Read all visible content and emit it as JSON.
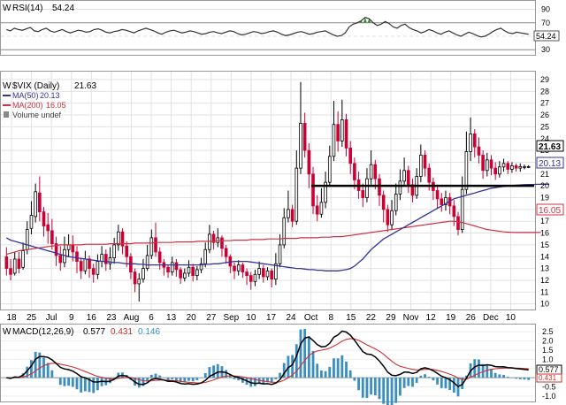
{
  "rsi": {
    "label": "RSI(14)",
    "value_text": "54.24",
    "yticks": [
      90,
      70,
      50,
      30
    ],
    "ylim": [
      25,
      100
    ],
    "line_color": "#333333",
    "values": [
      60,
      58,
      62,
      60,
      59,
      61,
      63,
      58,
      57,
      60,
      62,
      58,
      56,
      58,
      60,
      57,
      55,
      57,
      59,
      58,
      56,
      57,
      60,
      61,
      59,
      56,
      55,
      57,
      58,
      60,
      59,
      57,
      55,
      58,
      60,
      62,
      60,
      58,
      55,
      53,
      56,
      58,
      59,
      57,
      55,
      56,
      58,
      57,
      55,
      53,
      54,
      56,
      57,
      55,
      54,
      56,
      58,
      57,
      54,
      52,
      53,
      55,
      57,
      56,
      54,
      55,
      57,
      58,
      56,
      53,
      51,
      52,
      54,
      56,
      57,
      55,
      53,
      54,
      56,
      57,
      58,
      55,
      52,
      50,
      51,
      55,
      64,
      68,
      70,
      73,
      78,
      76,
      70,
      66,
      68,
      72,
      69,
      64,
      62,
      66,
      68,
      63,
      60,
      58,
      55,
      57,
      60,
      58,
      55,
      53,
      56,
      58,
      55,
      52,
      50,
      53,
      56,
      54,
      51,
      49,
      50,
      53,
      57,
      60,
      62,
      58,
      55,
      54,
      56,
      55,
      54,
      53
    ]
  },
  "main": {
    "symbol_label": "$VIX (Daily)",
    "symbol_value": "21.63",
    "ma50_label": "MA(50)",
    "ma50_value": "20.13",
    "ma200_label": "MA(200)",
    "ma200_value": "16.05",
    "volume_label": "Volume undef",
    "yticks": [
      29,
      28,
      27,
      26,
      25,
      24,
      23,
      22,
      21,
      20,
      19,
      18,
      17,
      16,
      15,
      14,
      13,
      12,
      11,
      10
    ],
    "ylim": [
      9.6,
      29.6
    ],
    "last_price_tag": "21.63",
    "ma50_tag": "20.13",
    "ma200_tag": "16.05",
    "resistance_level": 20,
    "colors": {
      "up": "#ffffff",
      "down": "#cc0033",
      "ma50": "#333399",
      "ma200": "#cc3344",
      "wick": "#000000"
    },
    "xlabels": [
      "18",
      "25",
      "Jul",
      "9",
      "16",
      "23",
      "Aug",
      "6",
      "13",
      "20",
      "27",
      "Sep",
      "10",
      "17",
      "24",
      "Oct",
      "8",
      "15",
      "22",
      "29",
      "Nov",
      "12",
      "19",
      "26",
      "Dec",
      "10"
    ]
  },
  "macd": {
    "label": "MACD(12,26,9)",
    "macd_value": "0.577",
    "signal_value": "0.431",
    "hist_value": "0.146",
    "yticks": [
      "2.5",
      "2.0",
      "1.5",
      "1.0",
      "0.5",
      "0.0",
      "-0.5",
      "-1.0"
    ],
    "ylim": [
      -1.2,
      2.8
    ],
    "colors": {
      "macd": "#000000",
      "signal": "#cc3333",
      "hist": "#3a8fc0"
    }
  },
  "chart_data": {
    "type": "candlestick",
    "title": "$VIX (Daily)",
    "ylim": [
      9.6,
      29.6
    ],
    "series": [
      {
        "name": "MA(50)",
        "values": [
          15.6,
          15.4,
          15.3,
          15.2,
          15.1,
          15.0,
          14.9,
          14.8,
          14.7,
          14.6,
          14.5,
          14.4,
          14.3,
          14.2,
          14.1,
          14.0,
          13.95,
          13.9,
          13.85,
          13.8,
          13.75,
          13.7,
          13.65,
          13.6,
          13.6,
          13.55,
          13.5,
          13.5,
          13.45,
          13.4,
          13.4,
          13.4,
          13.35,
          13.35,
          13.3,
          13.3,
          13.3,
          13.3,
          13.3,
          13.3,
          13.3,
          13.3,
          13.3,
          13.3,
          13.3,
          13.3,
          13.3,
          13.3,
          13.35,
          13.35,
          13.4,
          13.4,
          13.45,
          13.5,
          13.55,
          13.6,
          13.6,
          13.6,
          13.6,
          13.55,
          13.5,
          13.45,
          13.4,
          13.35,
          13.3,
          13.25,
          13.2,
          13.15,
          13.1,
          13.05,
          13.0,
          13.0,
          12.95,
          12.9,
          12.9,
          12.85,
          12.85,
          12.8,
          12.8,
          12.8,
          12.8,
          12.85,
          12.9,
          13.0,
          13.2,
          13.5,
          13.8,
          14.2,
          14.6,
          14.9,
          15.2,
          15.5,
          15.7,
          15.9,
          16.1,
          16.3,
          16.5,
          16.7,
          16.9,
          17.1,
          17.3,
          17.5,
          17.7,
          17.9,
          18.1,
          18.3,
          18.5,
          18.7,
          18.9,
          19.0,
          19.1,
          19.2,
          19.3,
          19.4,
          19.5,
          19.6,
          19.7,
          19.8,
          19.85,
          19.9,
          19.95,
          20.0,
          20.03,
          20.06,
          20.08,
          20.1,
          20.11,
          20.12,
          20.13,
          20.13,
          20.13,
          20.13
        ]
      },
      {
        "name": "MA(200)",
        "values": [
          14.2,
          14.3,
          14.4,
          14.5,
          14.55,
          14.6,
          14.65,
          14.7,
          14.75,
          14.8,
          14.85,
          14.9,
          14.95,
          15.0,
          15.0,
          15.0,
          15.0,
          15.0,
          15.0,
          15.05,
          15.05,
          15.05,
          15.05,
          15.05,
          15.05,
          15.1,
          15.1,
          15.1,
          15.1,
          15.1,
          15.1,
          15.15,
          15.15,
          15.15,
          15.15,
          15.15,
          15.2,
          15.2,
          15.2,
          15.2,
          15.2,
          15.25,
          15.25,
          15.25,
          15.25,
          15.25,
          15.3,
          15.3,
          15.3,
          15.3,
          15.3,
          15.35,
          15.35,
          15.35,
          15.35,
          15.4,
          15.4,
          15.4,
          15.4,
          15.45,
          15.45,
          15.45,
          15.45,
          15.5,
          15.5,
          15.5,
          15.5,
          15.55,
          15.55,
          15.55,
          15.55,
          15.6,
          15.6,
          15.6,
          15.6,
          15.6,
          15.65,
          15.65,
          15.65,
          15.7,
          15.7,
          15.7,
          15.75,
          15.8,
          15.85,
          15.9,
          15.95,
          16.0,
          16.05,
          16.1,
          16.15,
          16.2,
          16.25,
          16.3,
          16.35,
          16.4,
          16.45,
          16.5,
          16.55,
          16.6,
          16.65,
          16.7,
          16.75,
          16.8,
          16.85,
          16.9,
          16.95,
          17.0,
          17.0,
          16.95,
          16.9,
          16.8,
          16.7,
          16.6,
          16.5,
          16.4,
          16.3,
          16.25,
          16.2,
          16.15,
          16.1,
          16.08,
          16.06,
          16.05,
          16.05,
          16.05,
          16.05,
          16.05,
          16.05,
          16.05
        ]
      }
    ],
    "candles": [
      [
        14.0,
        13.0,
        14.8,
        12.4
      ],
      [
        13.0,
        12.5,
        13.8,
        12.0
      ],
      [
        12.6,
        13.8,
        14.4,
        12.4
      ],
      [
        13.8,
        13.0,
        14.4,
        12.6
      ],
      [
        13.1,
        14.5,
        15.2,
        12.9
      ],
      [
        14.6,
        16.3,
        17.0,
        14.2
      ],
      [
        16.4,
        17.5,
        18.7,
        15.9
      ],
      [
        17.4,
        19.5,
        20.2,
        16.9
      ],
      [
        19.4,
        17.8,
        20.8,
        17.0
      ],
      [
        17.8,
        16.6,
        18.2,
        15.7
      ],
      [
        16.7,
        16.2,
        17.7,
        15.1
      ],
      [
        16.2,
        15.1,
        17.2,
        14.6
      ],
      [
        15.1,
        14.1,
        15.7,
        13.2
      ],
      [
        14.1,
        13.5,
        14.9,
        12.8
      ],
      [
        13.5,
        14.6,
        15.7,
        13.1
      ],
      [
        14.6,
        15.0,
        15.9,
        14.0
      ],
      [
        15.0,
        14.4,
        15.8,
        13.6
      ],
      [
        14.4,
        13.6,
        14.9,
        12.6
      ],
      [
        13.6,
        12.8,
        13.9,
        12.1
      ],
      [
        12.8,
        13.8,
        14.5,
        12.5
      ],
      [
        13.8,
        13.0,
        14.1,
        12.2
      ],
      [
        13.0,
        12.5,
        13.4,
        11.8
      ],
      [
        12.5,
        13.6,
        14.2,
        12.1
      ],
      [
        13.6,
        14.2,
        14.9,
        13.1
      ],
      [
        14.2,
        13.4,
        14.6,
        12.8
      ],
      [
        13.4,
        13.9,
        14.8,
        12.9
      ],
      [
        13.9,
        15.0,
        15.6,
        13.4
      ],
      [
        15.0,
        16.1,
        16.7,
        14.5
      ],
      [
        16.1,
        14.9,
        16.4,
        14.2
      ],
      [
        14.9,
        14.0,
        15.3,
        13.1
      ],
      [
        14.0,
        12.7,
        14.3,
        12.1
      ],
      [
        12.7,
        11.7,
        13.0,
        11.0
      ],
      [
        11.7,
        12.1,
        12.6,
        10.2
      ],
      [
        12.1,
        13.0,
        13.8,
        11.8
      ],
      [
        13.0,
        14.1,
        15.0,
        12.8
      ],
      [
        14.1,
        15.6,
        16.3,
        13.8
      ],
      [
        15.6,
        14.4,
        16.9,
        14.0
      ],
      [
        14.4,
        13.5,
        14.8,
        12.9
      ],
      [
        13.5,
        13.1,
        13.8,
        12.4
      ],
      [
        13.1,
        12.7,
        13.3,
        12.2
      ],
      [
        12.7,
        13.5,
        14.0,
        12.4
      ],
      [
        13.5,
        12.9,
        13.8,
        12.3
      ],
      [
        12.9,
        12.2,
        13.1,
        11.7
      ],
      [
        12.2,
        12.6,
        13.0,
        11.9
      ],
      [
        12.6,
        13.1,
        13.7,
        12.3
      ],
      [
        13.1,
        12.4,
        13.4,
        11.9
      ],
      [
        12.4,
        12.9,
        13.2,
        12.0
      ],
      [
        12.9,
        13.4,
        13.9,
        12.6
      ],
      [
        13.4,
        14.6,
        15.2,
        13.1
      ],
      [
        14.6,
        15.9,
        16.7,
        14.3
      ],
      [
        15.9,
        15.2,
        16.2,
        14.6
      ],
      [
        15.2,
        15.6,
        16.4,
        14.8
      ],
      [
        15.6,
        14.7,
        15.8,
        14.0
      ],
      [
        14.7,
        14.0,
        15.0,
        13.4
      ],
      [
        14.0,
        13.2,
        14.2,
        12.6
      ],
      [
        13.2,
        12.8,
        13.5,
        12.1
      ],
      [
        12.8,
        13.3,
        13.7,
        12.4
      ],
      [
        13.3,
        12.7,
        13.5,
        12.2
      ],
      [
        12.7,
        12.4,
        13.0,
        11.6
      ],
      [
        12.4,
        11.9,
        12.7,
        11.2
      ],
      [
        11.9,
        12.5,
        12.9,
        11.5
      ],
      [
        12.5,
        13.0,
        13.6,
        12.1
      ],
      [
        13.0,
        12.3,
        13.3,
        11.8
      ],
      [
        12.3,
        12.8,
        13.1,
        12.0
      ],
      [
        12.8,
        12.1,
        13.0,
        11.4
      ],
      [
        12.1,
        13.4,
        14.3,
        11.6
      ],
      [
        13.4,
        15.0,
        15.9,
        13.1
      ],
      [
        15.0,
        17.3,
        18.1,
        14.7
      ],
      [
        17.3,
        18.0,
        19.6,
        16.9
      ],
      [
        18.0,
        17.0,
        18.4,
        16.5
      ],
      [
        17.0,
        21.5,
        23.0,
        16.7
      ],
      [
        21.5,
        25.3,
        28.8,
        21.0
      ],
      [
        25.3,
        23.0,
        26.2,
        22.4
      ],
      [
        23.0,
        21.0,
        23.6,
        19.8
      ],
      [
        21.0,
        18.3,
        21.6,
        17.6
      ],
      [
        18.3,
        17.6,
        19.2,
        17.0
      ],
      [
        17.6,
        18.6,
        19.8,
        17.3
      ],
      [
        18.6,
        20.3,
        21.2,
        18.1
      ],
      [
        20.3,
        22.5,
        23.4,
        20.0
      ],
      [
        22.5,
        25.2,
        27.2,
        22.1
      ],
      [
        25.2,
        23.8,
        26.3,
        22.9
      ],
      [
        23.8,
        25.6,
        27.3,
        23.3
      ],
      [
        25.6,
        23.2,
        26.1,
        22.5
      ],
      [
        23.2,
        21.9,
        23.8,
        21.0
      ],
      [
        21.9,
        20.5,
        22.4,
        19.7
      ],
      [
        20.5,
        19.6,
        21.2,
        18.9
      ],
      [
        19.6,
        19.0,
        20.2,
        18.2
      ],
      [
        19.0,
        20.6,
        21.5,
        18.6
      ],
      [
        20.6,
        21.8,
        23.0,
        20.1
      ],
      [
        21.8,
        20.6,
        22.2,
        19.7
      ],
      [
        20.6,
        19.2,
        21.0,
        18.3
      ],
      [
        19.2,
        18.0,
        19.6,
        16.9
      ],
      [
        18.0,
        16.7,
        18.4,
        16.1
      ],
      [
        16.7,
        17.9,
        18.8,
        16.3
      ],
      [
        17.9,
        19.3,
        20.2,
        17.5
      ],
      [
        19.3,
        20.4,
        21.4,
        18.8
      ],
      [
        20.4,
        21.3,
        22.4,
        20.0
      ],
      [
        21.3,
        20.1,
        21.7,
        19.4
      ],
      [
        20.1,
        19.2,
        20.6,
        18.6
      ],
      [
        19.2,
        20.8,
        21.5,
        18.9
      ],
      [
        20.8,
        22.6,
        23.5,
        20.3
      ],
      [
        22.6,
        21.5,
        23.0,
        20.8
      ],
      [
        21.5,
        20.3,
        21.9,
        19.6
      ],
      [
        20.3,
        19.6,
        20.7,
        18.8
      ],
      [
        19.6,
        18.9,
        20.1,
        18.1
      ],
      [
        18.9,
        18.4,
        19.4,
        17.8
      ],
      [
        18.4,
        19.0,
        19.6,
        17.9
      ],
      [
        19.0,
        18.3,
        19.4,
        17.6
      ],
      [
        18.3,
        17.4,
        18.8,
        16.6
      ],
      [
        17.4,
        16.3,
        17.8,
        15.8
      ],
      [
        16.3,
        19.7,
        20.8,
        16.0
      ],
      [
        19.7,
        22.9,
        24.6,
        19.3
      ],
      [
        22.9,
        24.4,
        25.8,
        22.1
      ],
      [
        24.4,
        23.3,
        24.8,
        22.4
      ],
      [
        23.3,
        22.6,
        24.1,
        21.9
      ],
      [
        22.6,
        21.3,
        23.0,
        20.6
      ],
      [
        21.3,
        22.2,
        22.8,
        20.8
      ],
      [
        22.2,
        21.5,
        22.6,
        20.9
      ],
      [
        21.5,
        21.0,
        22.0,
        20.5
      ],
      [
        21.0,
        21.6,
        22.1,
        20.7
      ],
      [
        21.6,
        21.9,
        22.3,
        21.2
      ],
      [
        21.9,
        21.4,
        22.1,
        21.0
      ],
      [
        21.4,
        21.7,
        22.0,
        21.1
      ],
      [
        21.7,
        21.5,
        21.9,
        21.2
      ],
      [
        21.5,
        21.63,
        21.9,
        21.2
      ],
      [
        21.63,
        21.63,
        21.8,
        21.4
      ],
      [
        21.63,
        21.63,
        21.75,
        21.5
      ]
    ]
  }
}
